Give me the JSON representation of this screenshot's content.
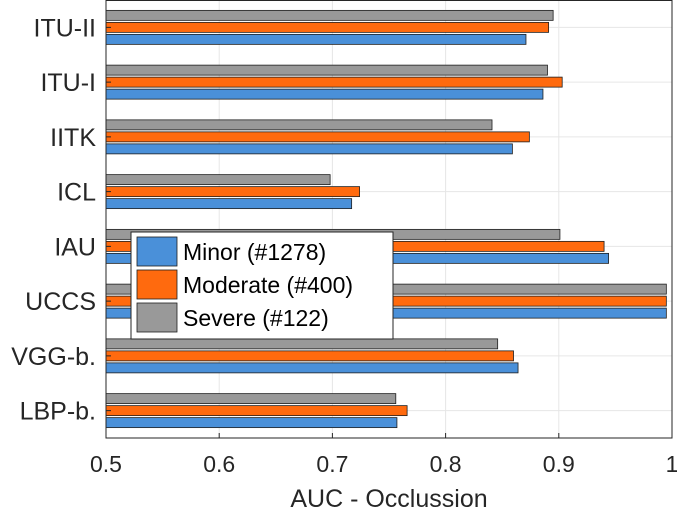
{
  "chart_data": {
    "type": "bar",
    "orientation": "horizontal",
    "categories": [
      "ITU-II",
      "ITU-I",
      "IITK",
      "ICL",
      "IAU",
      "UCCS",
      "VGG-b.",
      "LBP-b."
    ],
    "series": [
      {
        "name": "Minor (#1278)",
        "color": "#4a90d9",
        "values": [
          0.871,
          0.886,
          0.859,
          0.717,
          0.944,
          0.995,
          0.864,
          0.757
        ]
      },
      {
        "name": "Moderate (#400)",
        "color": "#ff6a0e",
        "values": [
          0.891,
          0.903,
          0.874,
          0.724,
          0.94,
          0.995,
          0.86,
          0.766
        ]
      },
      {
        "name": "Severe (#122)",
        "color": "#999999",
        "values": [
          0.895,
          0.89,
          0.841,
          0.698,
          0.901,
          0.995,
          0.846,
          0.756
        ]
      }
    ],
    "xlabel": "AUC - Occlussion",
    "ylabel": "",
    "xlim": [
      0.5,
      1.0
    ],
    "xticks": [
      "0.5",
      "0.6",
      "0.7",
      "0.8",
      "0.9",
      "1"
    ],
    "grid": true,
    "legend_position": "center-left"
  }
}
